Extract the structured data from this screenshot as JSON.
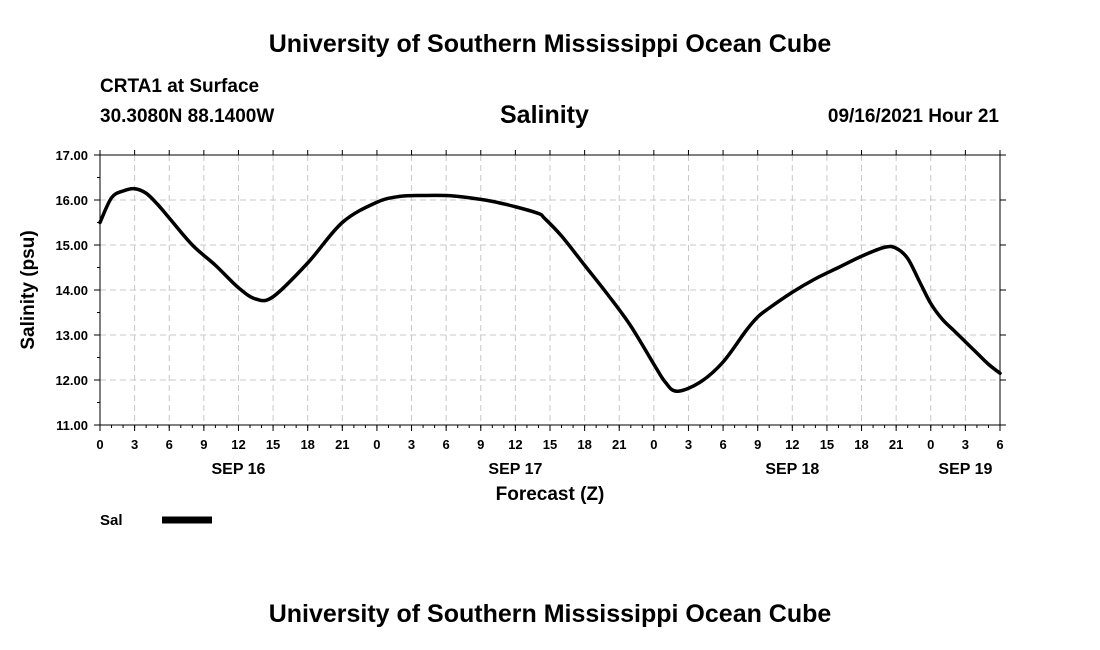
{
  "header": {
    "top_title": "University of Southern Mississippi Ocean Cube",
    "station": "CRTA1 at Surface",
    "coords": "30.3080N  88.1400W",
    "variable": "Salinity",
    "date": "09/16/2021 Hour 21"
  },
  "footer": {
    "bottom_title": "University of Southern Mississippi Ocean Cube"
  },
  "chart_data": {
    "type": "line",
    "xlabel": "Forecast (Z)",
    "ylabel": "Salinity (psu)",
    "xlim": [
      0,
      78
    ],
    "ylim": [
      11.0,
      17.0
    ],
    "y_ticks": [
      "11.00",
      "12.00",
      "13.00",
      "14.00",
      "15.00",
      "16.00",
      "17.00"
    ],
    "x_tick_labels": [
      "0",
      "3",
      "6",
      "9",
      "12",
      "15",
      "18",
      "21",
      "0",
      "3",
      "6",
      "9",
      "12",
      "15",
      "18",
      "21",
      "0",
      "3",
      "6",
      "9",
      "12",
      "15",
      "18",
      "21",
      "0",
      "3",
      "6"
    ],
    "day_labels": [
      {
        "label": "SEP 16",
        "hour": 12
      },
      {
        "label": "SEP 17",
        "hour": 36
      },
      {
        "label": "SEP 18",
        "hour": 60
      },
      {
        "label": "SEP 19",
        "hour": 75
      }
    ],
    "grid": true,
    "line_color": "#000000",
    "series": [
      {
        "name": "Sal",
        "x": [
          0,
          1,
          2,
          3,
          4,
          5,
          6,
          8,
          10,
          12,
          13.5,
          15,
          18,
          21,
          24,
          26,
          28,
          30,
          32,
          34,
          36,
          38,
          38.5,
          40,
          42,
          44,
          46,
          48,
          49,
          50,
          52,
          54,
          56,
          57,
          58,
          60,
          62,
          64,
          66,
          68,
          69,
          70,
          71,
          72,
          73,
          74,
          75,
          76,
          77,
          78
        ],
        "values": [
          15.5,
          16.05,
          16.2,
          16.25,
          16.15,
          15.9,
          15.6,
          15.0,
          14.55,
          14.05,
          13.8,
          13.85,
          14.6,
          15.5,
          15.95,
          16.08,
          16.1,
          16.1,
          16.05,
          15.97,
          15.85,
          15.7,
          15.6,
          15.2,
          14.55,
          13.9,
          13.2,
          12.35,
          11.95,
          11.75,
          11.95,
          12.4,
          13.1,
          13.4,
          13.6,
          13.95,
          14.25,
          14.5,
          14.75,
          14.95,
          14.93,
          14.7,
          14.2,
          13.7,
          13.35,
          13.1,
          12.85,
          12.6,
          12.35,
          12.15
        ]
      }
    ],
    "legend": [
      {
        "label": "Sal",
        "position": "bottom-left"
      }
    ]
  }
}
